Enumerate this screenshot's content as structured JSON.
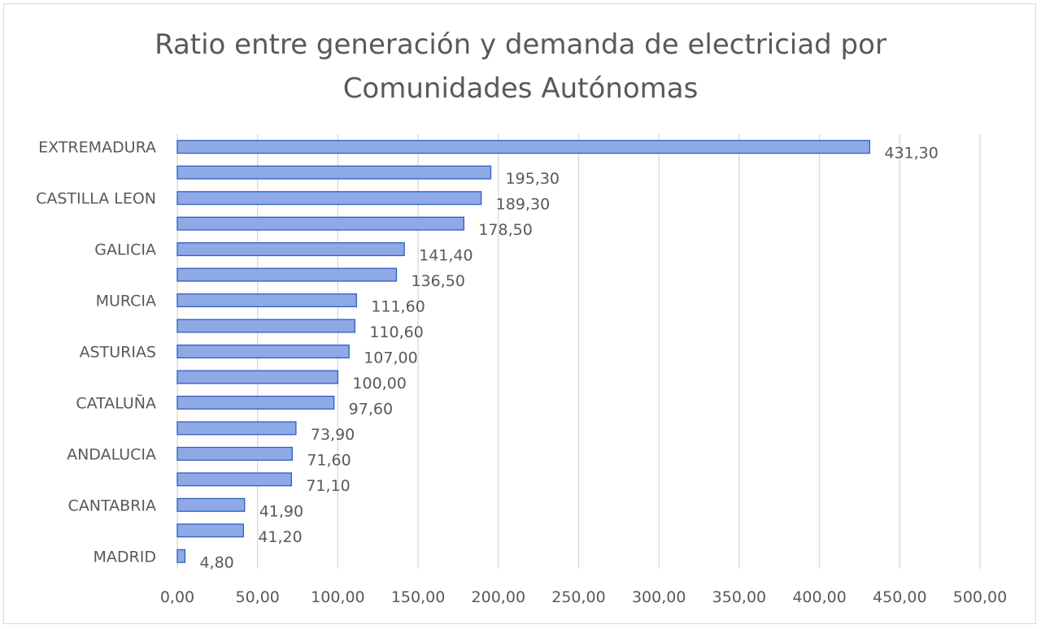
{
  "chart_data": {
    "type": "bar",
    "orientation": "horizontal",
    "title": [
      "Ratio entre generación y demanda de electriciad por",
      "Comunidades Autónomas"
    ],
    "categories": [
      "EXTREMADURA",
      "",
      "CASTILLA LEON",
      "",
      "GALICIA",
      "",
      "MURCIA",
      "",
      "ASTURIAS",
      "",
      "CATALUÑA",
      "",
      "ANDALUCIA",
      "",
      "CANTABRIA",
      "",
      "MADRID"
    ],
    "values": [
      431.3,
      195.3,
      189.3,
      178.5,
      141.4,
      136.5,
      111.6,
      110.6,
      107.0,
      100.0,
      97.6,
      73.9,
      71.6,
      71.1,
      41.9,
      41.2,
      4.8
    ],
    "value_labels": [
      "431,30",
      "195,30",
      "189,30",
      "178,50",
      "141,40",
      "136,50",
      "111,60",
      "110,60",
      "107,00",
      "100,00",
      "97,60",
      "73,90",
      "71,60",
      "71,10",
      "41,90",
      "41,20",
      "4,80"
    ],
    "x_ticks": [
      "0,00",
      "50,00",
      "100,00",
      "150,00",
      "200,00",
      "250,00",
      "300,00",
      "350,00",
      "400,00",
      "450,00",
      "500,00"
    ],
    "xlim": [
      0,
      500
    ],
    "grid": true,
    "legend": false,
    "colors": {
      "bar_fill": "#8ea9e6",
      "bar_stroke": "#2f5fc4",
      "grid": "#d9d9d9",
      "text": "#595959"
    }
  }
}
